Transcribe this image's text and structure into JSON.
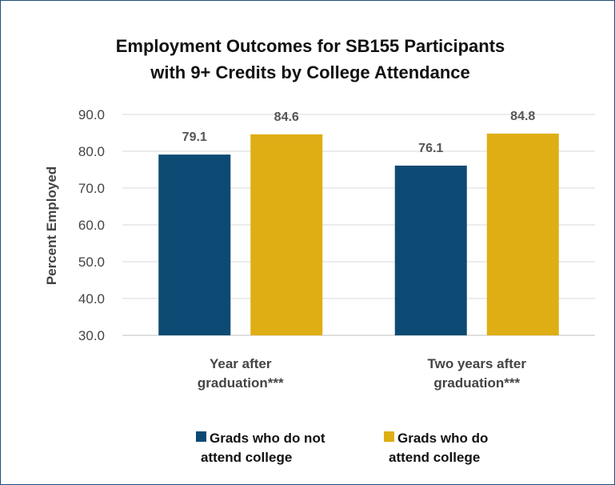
{
  "chart_data": {
    "type": "bar",
    "title": [
      "Employment Outcomes for SB155 Participants",
      "with 9+ Credits by College Attendance"
    ],
    "ylabel": "Percent Employed",
    "xlabel": "",
    "ylim": [
      30,
      90
    ],
    "yticks": [
      "30.0",
      "40.0",
      "50.0",
      "60.0",
      "70.0",
      "80.0",
      "90.0"
    ],
    "categories": [
      [
        "Year after",
        "graduation***"
      ],
      [
        "Two years after",
        "graduation***"
      ]
    ],
    "series": [
      {
        "name": [
          "Grads who do not",
          "attend college"
        ],
        "values": [
          79.1,
          76.1
        ],
        "labels": [
          "79.1",
          "76.1"
        ],
        "color": "#0d4a73"
      },
      {
        "name": [
          "Grads who do",
          "attend college"
        ],
        "values": [
          84.6,
          84.8
        ],
        "labels": [
          "84.6",
          "84.8"
        ],
        "color": "#dfae14"
      }
    ],
    "grid": true,
    "legend_position": "bottom"
  }
}
